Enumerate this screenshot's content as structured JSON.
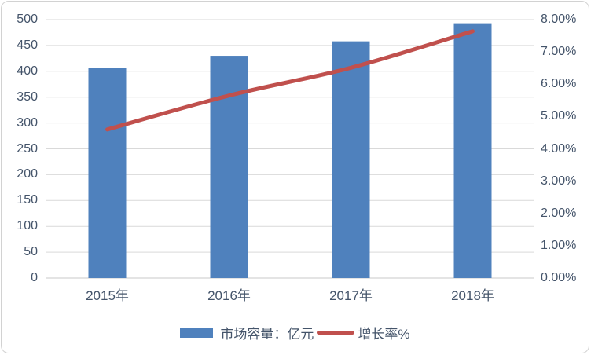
{
  "chart_data": {
    "type": "bar+line",
    "title": "",
    "categories": [
      "2015年",
      "2016年",
      "2017年",
      "2018年"
    ],
    "series": [
      {
        "name": "市场容量：亿元",
        "type": "bar",
        "axis": "left",
        "color": "#4f81bd",
        "values": [
          407,
          430,
          458,
          493
        ]
      },
      {
        "name": "增长率%",
        "type": "line",
        "axis": "right",
        "color": "#c0504d",
        "values": [
          4.6,
          5.65,
          6.51,
          7.64
        ]
      }
    ],
    "left_axis": {
      "min": 0,
      "max": 500,
      "step": 50,
      "tick_labels": [
        "500",
        "450",
        "400",
        "350",
        "300",
        "250",
        "200",
        "150",
        "100",
        "50",
        "0"
      ]
    },
    "right_axis": {
      "min": 0,
      "max": 8,
      "step": 1,
      "tick_labels": [
        "8.00%",
        "7.00%",
        "6.00%",
        "5.00%",
        "4.00%",
        "3.00%",
        "2.00%",
        "1.00%",
        "0.00%"
      ]
    },
    "grid": true,
    "legend_position": "bottom",
    "colors": {
      "grid": "#d9d9d9",
      "axis_line": "#c9c9c9",
      "text": "#44546a",
      "background": "#ffffff",
      "frame_border": "#d2d2d2"
    }
  }
}
